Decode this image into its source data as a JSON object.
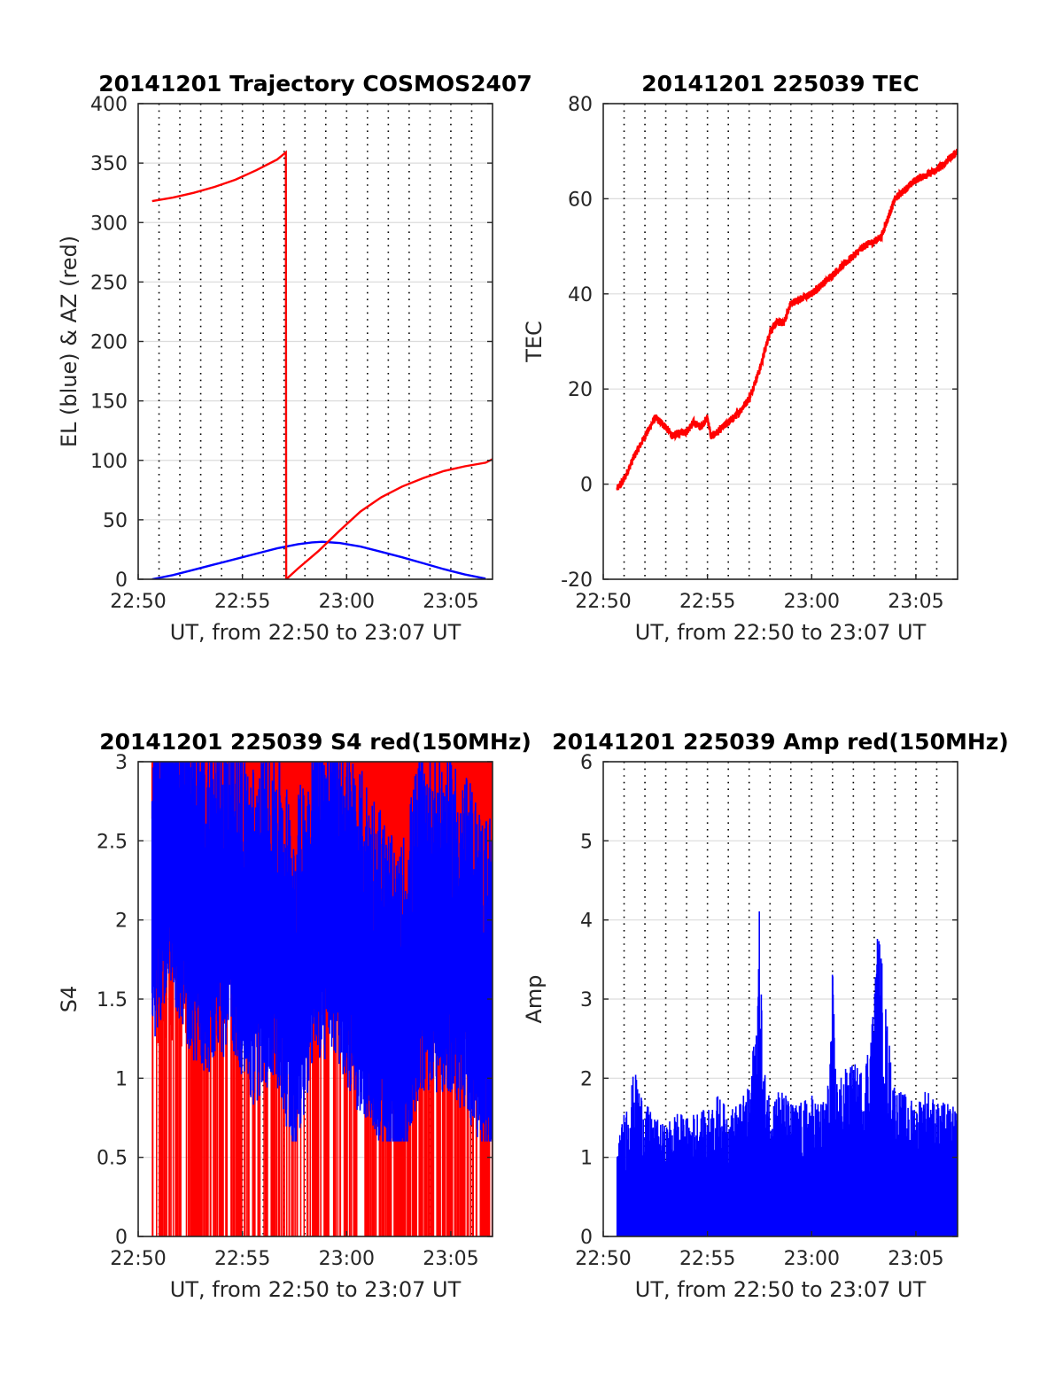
{
  "chart_data": [
    {
      "type": "line",
      "title": "20141201 Trajectory COSMOS2407",
      "xlabel": "UT, from 22:50 to 23:07 UT",
      "ylabel": "EL (blue) & AZ (red)",
      "xlim": [
        "22:50",
        "23:07"
      ],
      "ylim": [
        0,
        400
      ],
      "x_ticks": [
        "22:50",
        "22:55",
        "23:00",
        "23:05"
      ],
      "y_ticks": [
        "0",
        "50",
        "100",
        "150",
        "200",
        "250",
        "300",
        "350",
        "400"
      ],
      "grid": {
        "vertical": "dotted every 1 min",
        "horizontal": "light solid at y ticks"
      },
      "series": [
        {
          "label": "EL",
          "color": "#0000ff",
          "points": [
            [
              "22:50:40",
              0
            ],
            [
              "22:51:40",
              3.5
            ],
            [
              "22:52:40",
              8
            ],
            [
              "22:53:40",
              12.5
            ],
            [
              "22:54:40",
              17
            ],
            [
              "22:55:40",
              21.5
            ],
            [
              "22:56:40",
              26
            ],
            [
              "22:57:40",
              29.5
            ],
            [
              "22:58:20",
              31
            ],
            [
              "22:58:50",
              31.5
            ],
            [
              "22:59:40",
              30.5
            ],
            [
              "23:00:40",
              27.5
            ],
            [
              "23:01:40",
              23
            ],
            [
              "23:02:40",
              18.5
            ],
            [
              "23:03:40",
              13.5
            ],
            [
              "23:04:40",
              8.5
            ],
            [
              "23:05:40",
              4
            ],
            [
              "23:06:40",
              0.5
            ]
          ]
        },
        {
          "label": "AZ",
          "color": "#ff0000",
          "points": [
            [
              "22:50:40",
              318
            ],
            [
              "22:51:40",
              321
            ],
            [
              "22:52:40",
              325
            ],
            [
              "22:53:40",
              330
            ],
            [
              "22:54:40",
              336
            ],
            [
              "22:55:40",
              344
            ],
            [
              "22:56:40",
              353
            ],
            [
              "22:57:05",
              359
            ],
            [
              "22:57:06",
              0
            ],
            [
              "22:57:40",
              9
            ],
            [
              "22:58:40",
              24
            ],
            [
              "22:59:40",
              41
            ],
            [
              "23:00:40",
              57
            ],
            [
              "23:01:40",
              69
            ],
            [
              "23:02:40",
              78
            ],
            [
              "23:03:40",
              85
            ],
            [
              "23:04:40",
              91
            ],
            [
              "23:05:40",
              95
            ],
            [
              "23:06:40",
              98
            ],
            [
              "23:07:00",
              101
            ]
          ]
        }
      ]
    },
    {
      "type": "line",
      "title": "20141201 225039 TEC",
      "xlabel": "UT, from 22:50 to 23:07 UT",
      "ylabel": "TEC",
      "xlim": [
        "22:50",
        "23:07"
      ],
      "ylim": [
        -20,
        80
      ],
      "x_ticks": [
        "22:50",
        "22:55",
        "23:00",
        "23:05"
      ],
      "y_ticks": [
        "-20",
        "0",
        "20",
        "40",
        "60",
        "80"
      ],
      "grid": {
        "vertical": "dotted every 1 min",
        "horizontal": "light solid at y ticks"
      },
      "series": [
        {
          "label": "TEC",
          "color": "#ff0000",
          "points": [
            [
              "22:50:40",
              -1
            ],
            [
              "22:51:00",
              1
            ],
            [
              "22:51:30",
              6
            ],
            [
              "22:52:00",
              10
            ],
            [
              "22:52:30",
              14
            ],
            [
              "22:53:00",
              12
            ],
            [
              "22:53:20",
              10
            ],
            [
              "22:53:40",
              11
            ],
            [
              "22:54:00",
              11
            ],
            [
              "22:54:20",
              13
            ],
            [
              "22:54:40",
              12
            ],
            [
              "22:55:00",
              14
            ],
            [
              "22:55:10",
              10
            ],
            [
              "22:55:30",
              11
            ],
            [
              "22:56:00",
              13
            ],
            [
              "22:56:30",
              15
            ],
            [
              "22:57:00",
              18
            ],
            [
              "22:57:30",
              24
            ],
            [
              "22:58:00",
              32
            ],
            [
              "22:58:20",
              34
            ],
            [
              "22:58:40",
              34
            ],
            [
              "22:59:00",
              38
            ],
            [
              "22:59:30",
              39
            ],
            [
              "23:00:00",
              40
            ],
            [
              "23:00:30",
              42
            ],
            [
              "23:01:00",
              44
            ],
            [
              "23:01:30",
              46
            ],
            [
              "23:02:00",
              48
            ],
            [
              "23:02:30",
              50
            ],
            [
              "23:03:00",
              51
            ],
            [
              "23:03:20",
              52
            ],
            [
              "23:03:40",
              56
            ],
            [
              "23:04:00",
              60
            ],
            [
              "23:04:30",
              62
            ],
            [
              "23:05:00",
              64
            ],
            [
              "23:05:30",
              65
            ],
            [
              "23:06:00",
              66
            ],
            [
              "23:06:30",
              68
            ],
            [
              "23:07:00",
              70
            ]
          ]
        }
      ]
    },
    {
      "type": "bar",
      "title": "20141201 225039 S4 red(150MHz)",
      "xlabel": "UT, from 22:50 to 23:07 UT",
      "ylabel": "S4",
      "xlim": [
        "22:50",
        "23:07"
      ],
      "ylim": [
        0,
        3
      ],
      "x_ticks": [
        "22:50",
        "22:55",
        "23:00",
        "23:05"
      ],
      "y_ticks": [
        "0",
        "0.5",
        "1",
        "1.5",
        "2",
        "2.5",
        "3"
      ],
      "grid": {
        "vertical": "dotted every 1 min",
        "horizontal": "light solid at y ticks"
      },
      "series": [
        {
          "label": "S4 red",
          "color": "#ff0000",
          "style": "dense vertical spikes reaching 0 and above 3",
          "envelope": [
            [
              "22:50:40",
              3
            ],
            [
              "22:55:00",
              3
            ],
            [
              "23:00:00",
              3
            ],
            [
              "23:05:00",
              3
            ],
            [
              "23:07:00",
              3
            ]
          ]
        },
        {
          "label": "S4 blue",
          "color": "#0000ff",
          "envelope": [
            [
              "22:50:40",
              2.1
            ],
            [
              "22:51:30",
              2.6
            ],
            [
              "22:52:30",
              2.1
            ],
            [
              "22:53:30",
              2.0
            ],
            [
              "22:54:30",
              2.2
            ],
            [
              "22:55:30",
              1.8
            ],
            [
              "22:56:30",
              2.0
            ],
            [
              "22:57:30",
              1.5
            ],
            [
              "22:58:30",
              2.1
            ],
            [
              "22:59:30",
              2.1
            ],
            [
              "23:00:30",
              1.8
            ],
            [
              "23:01:30",
              1.6
            ],
            [
              "23:02:30",
              1.2
            ],
            [
              "23:03:30",
              1.9
            ],
            [
              "23:04:30",
              1.9
            ],
            [
              "23:05:30",
              1.8
            ],
            [
              "23:06:30",
              1.5
            ],
            [
              "23:07:00",
              1.5
            ]
          ]
        }
      ]
    },
    {
      "type": "bar",
      "title": "20141201 225039 Amp red(150MHz)",
      "xlabel": "UT, from 22:50 to 23:07 UT",
      "ylabel": "Amp",
      "xlim": [
        "22:50",
        "23:07"
      ],
      "ylim": [
        0,
        6
      ],
      "x_ticks": [
        "22:50",
        "22:55",
        "23:00",
        "23:05"
      ],
      "y_ticks": [
        "0",
        "1",
        "2",
        "3",
        "4",
        "5",
        "6"
      ],
      "grid": {
        "vertical": "dotted every 1 min",
        "horizontal": "light solid at y ticks"
      },
      "series": [
        {
          "label": "Amp",
          "color": "#0000ff",
          "style": "dense vertical spikes from 0",
          "envelope": [
            [
              "22:50:40",
              1.1
            ],
            [
              "22:51:00",
              1.6
            ],
            [
              "22:51:30",
              2.1
            ],
            [
              "22:52:00",
              1.7
            ],
            [
              "22:52:30",
              1.5
            ],
            [
              "22:53:00",
              1.4
            ],
            [
              "22:53:30",
              1.6
            ],
            [
              "22:54:00",
              1.5
            ],
            [
              "22:54:30",
              1.6
            ],
            [
              "22:55:00",
              1.6
            ],
            [
              "22:55:30",
              1.8
            ],
            [
              "22:56:00",
              1.6
            ],
            [
              "22:56:30",
              1.7
            ],
            [
              "22:57:00",
              1.9
            ],
            [
              "22:57:20",
              2.8
            ],
            [
              "22:57:30",
              4.2
            ],
            [
              "22:57:40",
              2.2
            ],
            [
              "22:58:00",
              1.8
            ],
            [
              "22:58:30",
              1.9
            ],
            [
              "22:59:00",
              1.7
            ],
            [
              "22:59:30",
              1.7
            ],
            [
              "23:00:00",
              1.8
            ],
            [
              "23:00:30",
              1.7
            ],
            [
              "23:00:50",
              2.0
            ],
            [
              "23:01:00",
              3.4
            ],
            [
              "23:01:10",
              2.0
            ],
            [
              "23:01:30",
              2.1
            ],
            [
              "23:02:00",
              2.2
            ],
            [
              "23:02:30",
              2.1
            ],
            [
              "23:03:00",
              3.0
            ],
            [
              "23:03:10",
              4.0
            ],
            [
              "23:03:20",
              3.6
            ],
            [
              "23:03:40",
              2.6
            ],
            [
              "23:04:00",
              1.9
            ],
            [
              "23:04:30",
              1.8
            ],
            [
              "23:05:00",
              1.7
            ],
            [
              "23:05:30",
              1.9
            ],
            [
              "23:06:00",
              1.7
            ],
            [
              "23:06:30",
              1.7
            ],
            [
              "23:07:00",
              1.6
            ]
          ]
        }
      ]
    }
  ]
}
